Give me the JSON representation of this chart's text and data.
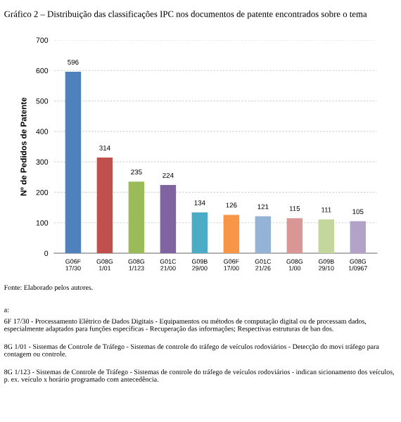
{
  "chart_data": {
    "type": "bar",
    "title": "Gráfico 2 – Distribuição das classificações IPC nos documentos de patente encontrados sobre o tema",
    "ylabel": "Nº de Pedidos de Patente",
    "categories": [
      "G06F\n17/30",
      "G08G\n1/01",
      "G08G\n1/123",
      "G01C\n21/00",
      "G09B\n29/00",
      "G06F\n17/00",
      "G01C\n21/26",
      "G08G\n1/00",
      "G09B\n29/10",
      "G08G\n1/0967"
    ],
    "values": [
      596,
      314,
      235,
      224,
      134,
      126,
      121,
      115,
      111,
      105
    ],
    "colors": [
      "#4f81bd",
      "#c0504d",
      "#9bbb59",
      "#8064a2",
      "#4bacc6",
      "#f79646",
      "#95b3d7",
      "#d99694",
      "#c3d69b",
      "#b3a2c7"
    ],
    "ylim": [
      0,
      700
    ],
    "yticks": [
      0,
      100,
      200,
      300,
      400,
      500,
      600,
      700
    ],
    "grid": "y",
    "data_labels": true,
    "annotations": [
      "Fonte: Elaborado pelos autores.",
      "a:",
      "6F 17/30 - Processamento Elétrico de Dados Digitais - Equipamentos ou métodos de computação digital ou de processam dados, especialmente adaptados para funções específicas - Recuperação das informações; Respectivas estruturas de ban dos.",
      "8G 1/01 - Sistemas de Controle de Tráfego - Sistemas de controle do tráfego de veículos rodoviários - Detecção do movi tráfego para contagem ou controle.",
      "8G 1/123 - Sistemas de Controle de Tráfego - Sistemas de controle do tráfego de veículos rodoviários - indican sicionamento dos veículos, p. ex. veículo x horário programado com antecedência."
    ]
  }
}
